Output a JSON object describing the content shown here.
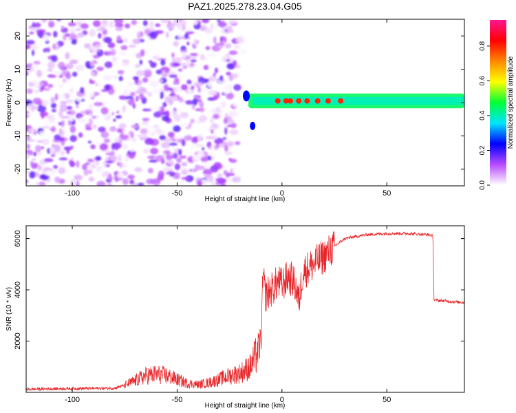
{
  "title": "PAZ1.2025.278.23.04.G05",
  "chart_data": [
    {
      "type": "heatmap",
      "name": "spectrogram",
      "xlabel": "Height of straight line (km)",
      "ylabel": "Frequency (Hz)",
      "xlim": [
        -122,
        87
      ],
      "ylim": [
        -25,
        25
      ],
      "xticks": [
        -100,
        -50,
        0,
        50
      ],
      "yticks": [
        20,
        10,
        0,
        -10,
        -20
      ],
      "colorbar": {
        "label": "Normalized spectral amplitude",
        "range": [
          0,
          0.95
        ],
        "ticks": [
          0.0,
          0.2,
          0.4,
          0.6,
          0.8
        ],
        "colors": [
          "#ffffff",
          "#b84bff",
          "#0000ff",
          "#00e5ff",
          "#00ff33",
          "#ffff00",
          "#ff8800",
          "#ff0000",
          "#ff1493"
        ]
      },
      "regions": [
        {
          "description": "diffuse noise",
          "x_range": [
            -122,
            -18
          ],
          "freq_range": [
            -25,
            25
          ],
          "amplitude_range": [
            0.0,
            0.18
          ]
        },
        {
          "description": "signal trace",
          "x_range": [
            -16,
            87
          ],
          "freq_center": 0.5,
          "freq_width": 2.0,
          "amplitude_peak": 0.8
        }
      ]
    },
    {
      "type": "line",
      "name": "snr",
      "xlabel": "Height of straight line (km)",
      "ylabel": "SNR (10 * v/v)",
      "xlim": [
        -122,
        87
      ],
      "ylim": [
        0,
        6500
      ],
      "xticks": [
        -100,
        -50,
        0,
        50
      ],
      "yticks": [
        2000,
        4000,
        6000
      ],
      "color": "#e8262a",
      "series": [
        {
          "name": "SNR",
          "x": [
            -122,
            -100,
            -80,
            -75,
            -70,
            -65,
            -60,
            -55,
            -50,
            -45,
            -40,
            -35,
            -30,
            -25,
            -20,
            -15,
            -12,
            -10,
            -9,
            -8,
            -5,
            -2,
            0,
            3,
            5,
            7,
            8,
            10,
            15,
            20,
            25,
            30,
            40,
            50,
            60,
            70,
            72,
            72.5,
            80,
            87
          ],
          "y": [
            120,
            150,
            160,
            280,
            450,
            650,
            700,
            650,
            500,
            350,
            300,
            380,
            500,
            650,
            750,
            1000,
            1500,
            2000,
            4600,
            3800,
            4000,
            4300,
            4200,
            4500,
            4400,
            4000,
            3500,
            4700,
            5000,
            5300,
            5700,
            6000,
            6150,
            6200,
            6200,
            6150,
            6100,
            3600,
            3550,
            3500
          ]
        }
      ]
    }
  ]
}
